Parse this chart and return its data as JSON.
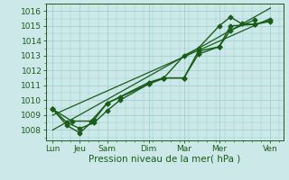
{
  "bg_color": "#cce8e8",
  "grid_color": "#99cccc",
  "line_color": "#1a5c1a",
  "marker_color": "#1a5c1a",
  "xlabel": "Pression niveau de la mer( hPa )",
  "xlabel_fontsize": 7.5,
  "ylabel_fontsize": 6.5,
  "tick_fontsize": 6.5,
  "ylim": [
    1007.3,
    1016.5
  ],
  "yticks": [
    1008,
    1009,
    1010,
    1011,
    1012,
    1013,
    1014,
    1015,
    1016
  ],
  "xtick_labels": [
    "Lun",
    "Jeu",
    "Sam",
    "Dim",
    "Mar",
    "Mer",
    "Ven"
  ],
  "xtick_positions": [
    0,
    0.85,
    1.7,
    3.0,
    4.1,
    5.2,
    6.8
  ],
  "xlim": [
    -0.2,
    7.2
  ],
  "series": [
    {
      "x": [
        0,
        0.45,
        0.85,
        1.3,
        1.7,
        2.1,
        3.0,
        3.45,
        4.1,
        4.55,
        5.2,
        5.55,
        5.9,
        6.3,
        6.8
      ],
      "y": [
        1009.4,
        1008.5,
        1008.1,
        1008.5,
        1009.3,
        1010.0,
        1011.1,
        1011.45,
        1013.0,
        1013.5,
        1015.0,
        1015.6,
        1015.15,
        1015.1,
        1015.3
      ],
      "marker": "D",
      "markersize": 2.5,
      "linewidth": 1.0
    },
    {
      "x": [
        0,
        0.45,
        0.85,
        1.3,
        1.7,
        2.1,
        3.0,
        3.45,
        4.1,
        4.55,
        5.2,
        5.55,
        6.3
      ],
      "y": [
        1009.4,
        1008.3,
        1007.8,
        1008.7,
        1009.8,
        1010.2,
        1011.1,
        1011.5,
        1011.5,
        1013.3,
        1013.6,
        1014.7,
        1015.4
      ],
      "marker": "D",
      "markersize": 2.5,
      "linewidth": 1.0
    },
    {
      "x": [
        0,
        0.6,
        1.2,
        1.7,
        3.0,
        3.45,
        4.1,
        4.55,
        5.2,
        5.55,
        6.3,
        6.8
      ],
      "y": [
        1009.4,
        1008.6,
        1008.6,
        1009.8,
        1011.2,
        1011.5,
        1011.5,
        1013.1,
        1013.6,
        1015.0,
        1015.1,
        1015.4
      ],
      "marker": "D",
      "markersize": 2.5,
      "linewidth": 1.0
    },
    {
      "x": [
        0,
        6.8
      ],
      "y": [
        1009.0,
        1015.5
      ],
      "marker": null,
      "markersize": 0,
      "linewidth": 0.9
    },
    {
      "x": [
        0,
        6.8
      ],
      "y": [
        1008.0,
        1016.2
      ],
      "marker": null,
      "markersize": 0,
      "linewidth": 0.9
    }
  ]
}
